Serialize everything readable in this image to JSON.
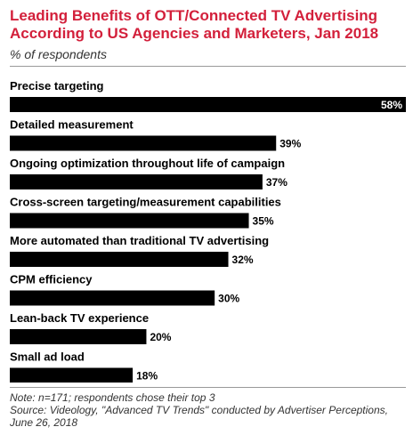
{
  "title": "Leading Benefits of OTT/Connected TV Advertising According to US Agencies and Marketers, Jan 2018",
  "subtitle": "% of respondents",
  "notes": {
    "note": "Note: n=171; respondents chose their top 3",
    "source": "Source: Videology, \"Advanced TV Trends\" conducted by Advertiser Perceptions, June 26, 2018"
  },
  "chart_data": {
    "type": "bar",
    "orientation": "horizontal",
    "categories": [
      "Precise targeting",
      "Detailed measurement",
      "Ongoing optimization throughout life of campaign",
      "Cross-screen targeting/measurement capabilities",
      "More automated than traditional TV advertising",
      "CPM efficiency",
      "Lean-back TV experience",
      "Small ad load"
    ],
    "values": [
      58,
      39,
      37,
      35,
      32,
      30,
      20,
      18
    ],
    "value_labels": [
      "58%",
      "39%",
      "37%",
      "35%",
      "32%",
      "30%",
      "20%",
      "18%"
    ],
    "xlim": [
      0,
      58
    ],
    "bar_color": "#000000",
    "grid": false,
    "legend": "none"
  }
}
